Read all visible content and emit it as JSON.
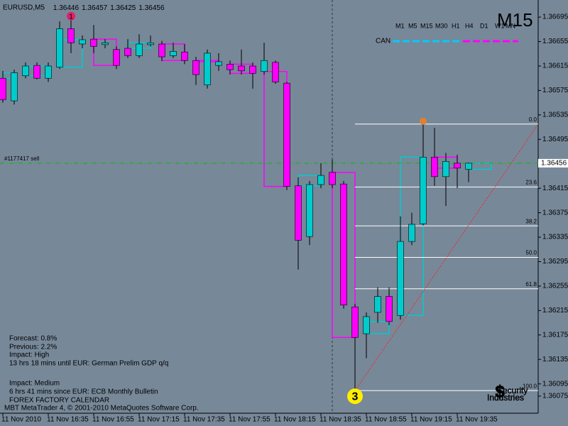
{
  "chart_data": {
    "type": "candlestick",
    "title": "EURUSD,M5",
    "categories": [
      "11 Nov 2010",
      null,
      null,
      null,
      "11 Nov 16:35",
      null,
      null,
      null,
      "11 Nov 16:55",
      null,
      null,
      null,
      "11 Nov 17:15",
      null,
      null,
      null,
      "11 Nov 17:35",
      null,
      null,
      null,
      "11 Nov 17:55",
      null,
      null,
      null,
      "11 Nov 18:15",
      null,
      null,
      null,
      "11 Nov 18:35",
      null,
      null,
      null,
      "11 Nov 18:55",
      null,
      null,
      null,
      "11 Nov 19:15",
      null,
      null,
      null,
      "11 Nov 19:35",
      null
    ],
    "open": [
      1.36595,
      1.36558,
      1.36599,
      1.36616,
      1.36595,
      1.36613,
      1.36676,
      1.36651,
      1.36659,
      1.3665,
      1.36642,
      1.36644,
      1.36632,
      1.3665,
      1.36651,
      1.36632,
      1.36638,
      1.36624,
      1.36584,
      1.36616,
      1.36618,
      1.36615,
      1.36615,
      1.36606,
      1.36621,
      1.36587,
      1.36419,
      1.36336,
      1.36421,
      1.36441,
      1.36422,
      1.36221,
      1.36177,
      1.36212,
      1.36238,
      1.36207,
      1.36328,
      1.36357,
      1.36466,
      1.36434,
      1.36456,
      1.36446
    ],
    "high": [
      1.36607,
      1.36609,
      1.36621,
      1.36621,
      1.36621,
      1.36688,
      1.36692,
      1.36665,
      1.36682,
      1.36659,
      1.36647,
      1.36659,
      1.36667,
      1.36665,
      1.36656,
      1.36653,
      1.36651,
      1.3663,
      1.36642,
      1.36636,
      1.36624,
      1.36642,
      1.36621,
      1.36653,
      1.36624,
      1.36589,
      1.36433,
      1.36427,
      1.36456,
      1.36462,
      1.36427,
      1.36226,
      1.36212,
      1.36253,
      1.36253,
      1.36369,
      1.36375,
      1.3652,
      1.36514,
      1.36473,
      1.3647,
      1.36457
    ],
    "low": [
      1.36555,
      1.36552,
      1.36595,
      1.36593,
      1.36589,
      1.3661,
      1.36636,
      1.36644,
      1.36636,
      1.36644,
      1.3661,
      1.36628,
      1.36628,
      1.36647,
      1.36623,
      1.36628,
      1.36618,
      1.36584,
      1.36578,
      1.36607,
      1.36601,
      1.36601,
      1.36578,
      1.36601,
      1.36586,
      1.36412,
      1.36282,
      1.36322,
      1.36415,
      1.36415,
      1.36218,
      1.36084,
      1.36137,
      1.36195,
      1.36191,
      1.362,
      1.36322,
      1.36354,
      1.36419,
      1.36386,
      1.36415,
      1.36425
    ],
    "close": [
      1.3656,
      1.36604,
      1.36615,
      1.36595,
      1.36615,
      1.36676,
      1.36653,
      1.36658,
      1.36647,
      1.36653,
      1.36616,
      1.36632,
      1.36651,
      1.36653,
      1.3663,
      1.36639,
      1.36624,
      1.36601,
      1.36636,
      1.36622,
      1.36609,
      1.36607,
      1.36603,
      1.36624,
      1.36589,
      1.36418,
      1.3633,
      1.36421,
      1.36436,
      1.36421,
      1.36224,
      1.36171,
      1.36205,
      1.36238,
      1.36197,
      1.36328,
      1.36356,
      1.36466,
      1.36434,
      1.36459,
      1.36448,
      1.36456
    ],
    "up_color": "#00cccc",
    "down_color": "#ff00ff",
    "ylim": [
      1.36047,
      1.36723
    ],
    "yticks": [
      1.36695,
      1.36655,
      1.36615,
      1.36575,
      1.36535,
      1.36495,
      1.36415,
      1.36375,
      1.36335,
      1.36295,
      1.36255,
      1.36215,
      1.36175,
      1.36135,
      1.36095,
      1.36075
    ],
    "grid": false,
    "higher_timeframe": "M15",
    "timeframes": [
      "M1",
      "M5",
      "M15",
      "M30",
      "H1",
      "H4",
      "D1",
      "W1",
      "MN"
    ],
    "can_label": "CAN",
    "order": {
      "label": "#1177417 sell",
      "price": 1.36456
    },
    "fibonacci": {
      "low_bar": 31,
      "high_bar": 37,
      "levels": [
        {
          "value": 0,
          "label": "0.0"
        },
        {
          "value": 23.6,
          "label": "23.6"
        },
        {
          "value": 38.2,
          "label": "38.2"
        },
        {
          "value": 50,
          "label": "50.0"
        },
        {
          "value": 61.8,
          "label": "61.8"
        },
        {
          "value": 100,
          "label": "100.0"
        }
      ]
    },
    "markers": [
      {
        "bar": 6,
        "label": "1",
        "color": "#e0206a",
        "at": "high"
      },
      {
        "bar": 37,
        "color": "#e08030",
        "at": "high"
      },
      {
        "bar": 31,
        "label": "3",
        "color": "#ffee00",
        "at": "low"
      }
    ],
    "calendar": [
      {
        "text": "Forecast: 0.8%",
        "color": "#33ff33"
      },
      {
        "text": "Previous: 2.2%",
        "color": "#e07b20"
      },
      {
        "text": "Impact: High",
        "color": "#ff2020"
      },
      {
        "text": "13 hrs 18 mins until EUR: German Prelim GDP q/q",
        "color": "#00ccff"
      },
      {
        "text": "Impact: Medium",
        "color": "#ff2020"
      },
      {
        "text": "6 hrs 41 mins since EUR: ECB Monthly Bulletin",
        "color": "#00ccff"
      },
      {
        "text": "FOREX FACTORY CALENDAR",
        "color": "#f0f0f0"
      }
    ],
    "copyright": "MBT MetaTrader 4, © 2001-2010 MetaQuotes Software Corp.",
    "logo": {
      "symbol": "$",
      "line1": "Security",
      "line2": "Industries"
    }
  }
}
